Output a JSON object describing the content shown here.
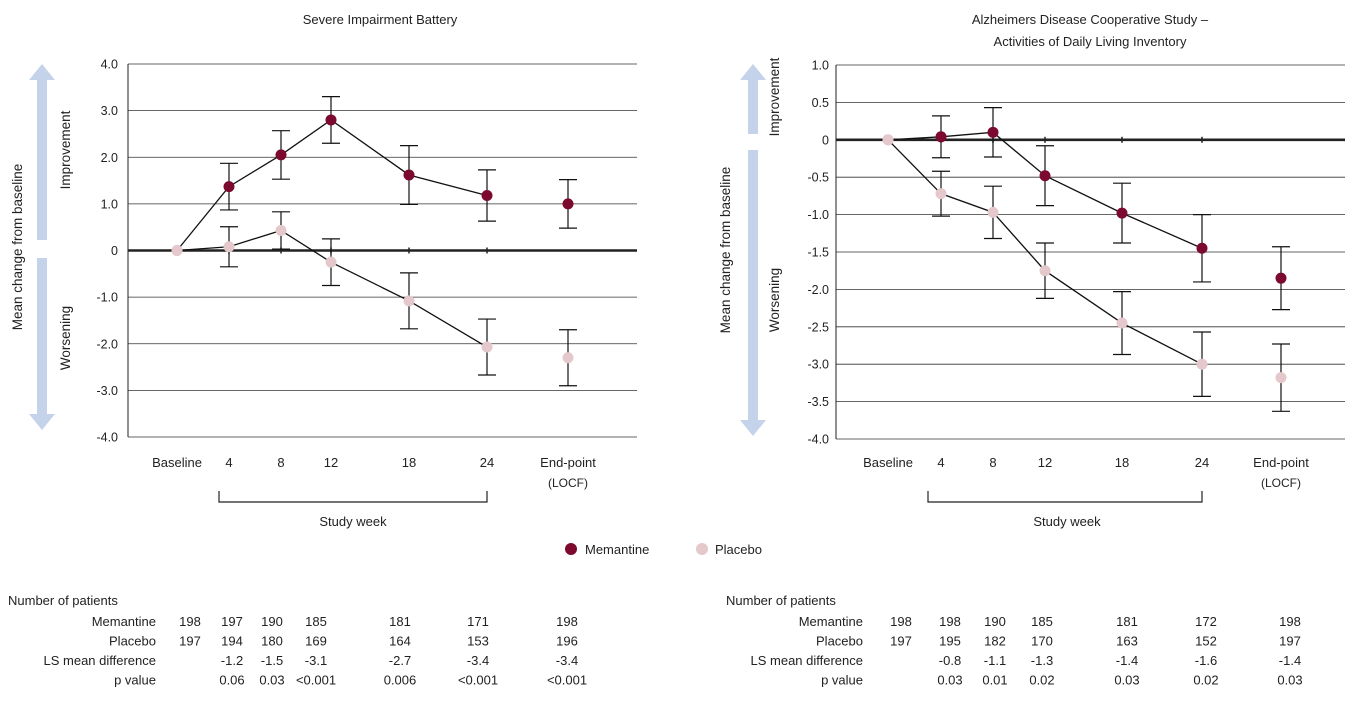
{
  "chart_data": [
    {
      "type": "line",
      "title": "Severe Impairment Battery",
      "ylabel": "Mean change from baseline",
      "ylabel_improvement": "Improvement",
      "ylabel_worsening": "Worsening",
      "xlabel": "Study week",
      "ylim": [
        -4,
        4
      ],
      "yticks": [
        "4.0",
        "3.0",
        "2.0",
        "1.0",
        "0",
        "-1.0",
        "-2.0",
        "-3.0",
        "-4.0"
      ],
      "ytick_values": [
        4,
        3,
        2,
        1,
        0,
        -1,
        -2,
        -3,
        -4
      ],
      "categories": [
        "Baseline",
        "4",
        "8",
        "12",
        "18",
        "24",
        "End-point"
      ],
      "endpoint_sublabel": "(LOCF)",
      "series": [
        {
          "name": "Memantine",
          "color": "#7b0a2e",
          "values": [
            0,
            1.37,
            2.05,
            2.8,
            1.62,
            1.18,
            1.0
          ],
          "error": [
            null,
            0.5,
            0.52,
            0.5,
            0.63,
            0.55,
            0.52
          ]
        },
        {
          "name": "Placebo",
          "color": "#e4c8cb",
          "values": [
            0,
            0.08,
            0.43,
            -0.25,
            -1.08,
            -2.07,
            -2.3
          ],
          "error": [
            null,
            0.43,
            0.4,
            0.5,
            0.6,
            0.6,
            0.6
          ]
        }
      ],
      "table": {
        "heading": "Number of patients",
        "rows": [
          {
            "label": "Memantine",
            "values": [
              "198",
              "197",
              "190",
              "185",
              "181",
              "171",
              "198"
            ]
          },
          {
            "label": "Placebo",
            "values": [
              "197",
              "194",
              "180",
              "169",
              "164",
              "153",
              "196"
            ]
          },
          {
            "label": "LS mean difference",
            "values": [
              "",
              "-1.2",
              "-1.5",
              "-3.1",
              "-2.7",
              "-3.4",
              "-3.4"
            ]
          },
          {
            "label": "p value",
            "values": [
              "",
              "0.06",
              "0.03",
              "<0.001",
              "0.006",
              "<0.001",
              "<0.001"
            ]
          }
        ]
      }
    },
    {
      "type": "line",
      "title": "Alzheimers Disease Cooperative Study –",
      "subtitle": "Activities of Daily Living Inventory",
      "ylabel": "Mean change from baseline",
      "ylabel_improvement": "Improvement",
      "ylabel_worsening": "Worsening",
      "xlabel": "Study week",
      "ylim": [
        -4,
        1
      ],
      "yticks": [
        "1.0",
        "0.5",
        "0",
        "-0.5",
        "-1.0",
        "-1.5",
        "-2.0",
        "-2.5",
        "-3.0",
        "-3.5",
        "-4.0"
      ],
      "ytick_values": [
        1,
        0.5,
        0,
        -0.5,
        -1,
        -1.5,
        -2,
        -2.5,
        -3,
        -3.5,
        -4
      ],
      "categories": [
        "Baseline",
        "4",
        "8",
        "12",
        "18",
        "24",
        "End-point"
      ],
      "endpoint_sublabel": "(LOCF)",
      "series": [
        {
          "name": "Memantine",
          "color": "#7b0a2e",
          "values": [
            0,
            0.04,
            0.1,
            -0.48,
            -0.98,
            -1.45,
            -1.85
          ],
          "error": [
            null,
            0.28,
            0.33,
            0.4,
            0.4,
            0.45,
            0.42
          ]
        },
        {
          "name": "Placebo",
          "color": "#e4c8cb",
          "values": [
            0,
            -0.72,
            -0.97,
            -1.75,
            -2.45,
            -3.0,
            -3.18
          ],
          "error": [
            null,
            0.3,
            0.35,
            0.37,
            0.42,
            0.43,
            0.45
          ]
        }
      ],
      "table": {
        "heading": "Number of patients",
        "rows": [
          {
            "label": "Memantine",
            "values": [
              "198",
              "198",
              "190",
              "185",
              "181",
              "172",
              "198"
            ]
          },
          {
            "label": "Placebo",
            "values": [
              "197",
              "195",
              "182",
              "170",
              "163",
              "152",
              "197"
            ]
          },
          {
            "label": "LS mean difference",
            "values": [
              "",
              "-0.8",
              "-1.1",
              "-1.3",
              "-1.4",
              "-1.6",
              "-1.4"
            ]
          },
          {
            "label": "p value",
            "values": [
              "",
              "0.03",
              "0.01",
              "0.02",
              "0.03",
              "0.02",
              "0.03"
            ]
          }
        ]
      }
    }
  ],
  "legend": [
    {
      "label": "Memantine",
      "color": "#7b0a2e"
    },
    {
      "label": "Placebo",
      "color": "#e4c8cb"
    }
  ],
  "colors": {
    "arrow": "#c5d3ea",
    "grid": "#333333",
    "axis": "#222222"
  }
}
